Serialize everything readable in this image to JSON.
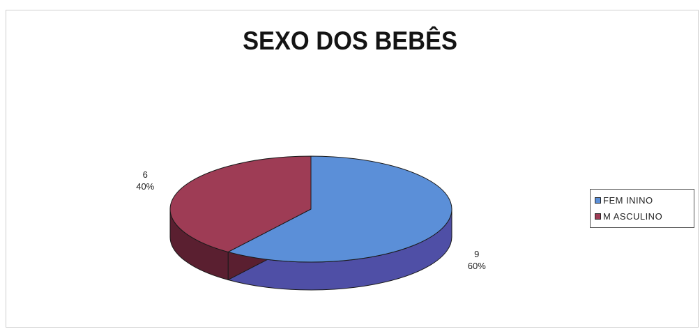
{
  "chart_data": {
    "type": "pie",
    "title": "SEXO DOS BEBÊS",
    "categories": [
      "FEMININO",
      "MASCULINO"
    ],
    "values": [
      9,
      6
    ],
    "percent_labels": [
      "60%",
      "40%"
    ],
    "value_labels": [
      "9",
      "6"
    ],
    "colors": [
      "#5b8fd8",
      "#9e3c55"
    ],
    "side_colors": [
      "#4f4fa6",
      "#5a1f30"
    ],
    "legend": {
      "position": "right",
      "entries": [
        "FEMININO",
        "MASCULINO"
      ],
      "display_labels": [
        "FEM ININO",
        "M ASCULINO"
      ]
    },
    "style": "3d"
  }
}
